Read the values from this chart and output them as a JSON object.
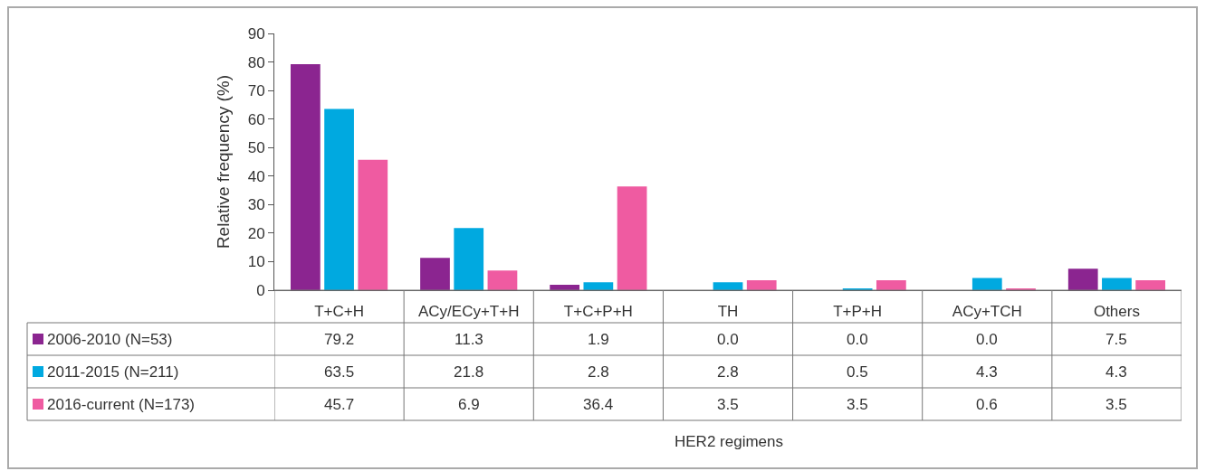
{
  "chart_data": {
    "type": "bar",
    "categories": [
      "T+C+H",
      "ACy/ECy+T+H",
      "T+C+P+H",
      "TH",
      "T+P+H",
      "ACy+TCH",
      "Others"
    ],
    "series": [
      {
        "name": "2006-2010 (N=53)",
        "color": "#8b2590",
        "values": [
          79.2,
          11.3,
          1.9,
          0.0,
          0.0,
          0.0,
          7.5
        ],
        "value_labels": [
          "79.2",
          "11.3",
          "1.9",
          "0.0",
          "0.0",
          "0.0",
          "7.5"
        ]
      },
      {
        "name": "2011-2015 (N=211)",
        "color": "#00a9e0",
        "values": [
          63.5,
          21.8,
          2.8,
          2.8,
          0.5,
          4.3,
          4.3
        ],
        "value_labels": [
          "63.5",
          "21.8",
          "2.8",
          "2.8",
          "0.5",
          "4.3",
          "4.3"
        ]
      },
      {
        "name": "2016-current (N=173)",
        "color": "#ef5ba1",
        "values": [
          45.7,
          6.9,
          36.4,
          3.5,
          3.5,
          0.6,
          3.5
        ],
        "value_labels": [
          "45.7",
          "6.9",
          "36.4",
          "3.5",
          "3.5",
          "0.6",
          "3.5"
        ]
      }
    ],
    "annotations": [
      "HER2 regimens"
    ],
    "legend": "bottom left",
    "ylabel": "Relative frequency (%)",
    "ylim": [
      0,
      90
    ],
    "yticks": [
      0,
      10,
      20,
      30,
      40,
      50,
      60,
      70,
      80,
      90
    ]
  }
}
